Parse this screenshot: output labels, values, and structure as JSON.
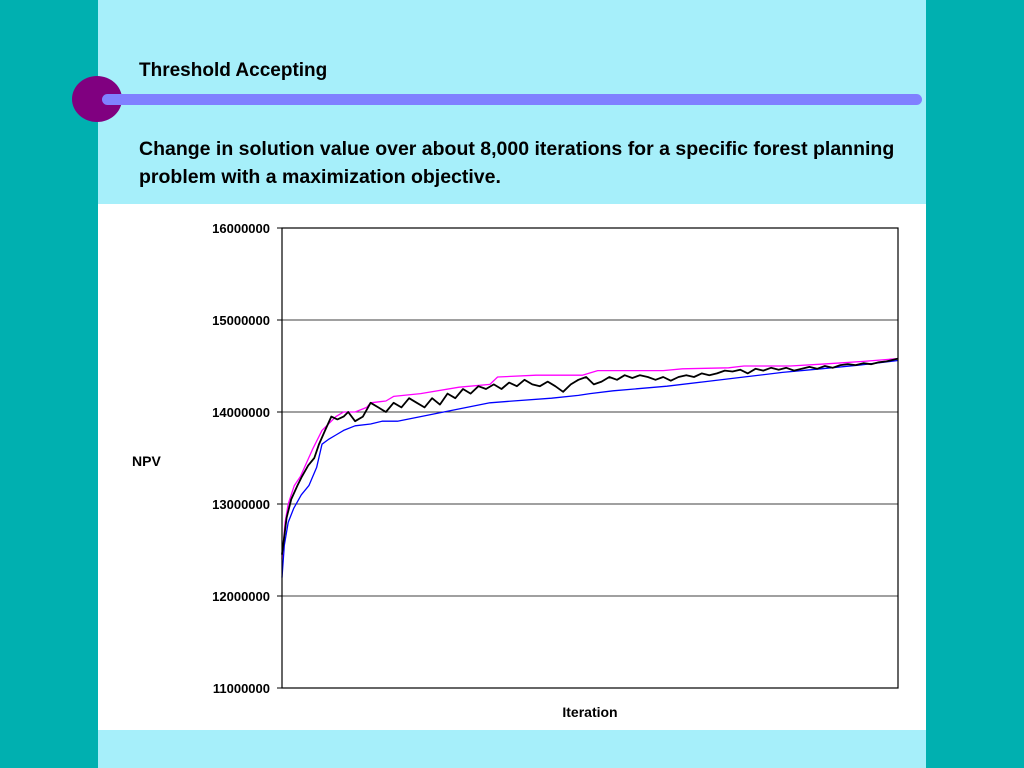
{
  "slide": {
    "title": "Threshold Accepting",
    "subtitle": "Change in solution value over about 8,000 iterations for a specific forest planning problem with a maximization objective."
  },
  "colors": {
    "background": "#00b0b0",
    "slide_panel": "#a6effa",
    "accent_circle": "#800080",
    "accent_bar": "#8080ff",
    "current_series": "#000000",
    "upper_series": "#ff00ff",
    "lower_series": "#0000ff"
  },
  "chart_data": {
    "type": "line",
    "title": "",
    "xlabel": "Iteration",
    "ylabel": "NPV",
    "ylim": [
      11000000,
      16000000
    ],
    "yticks": [
      11000000,
      12000000,
      13000000,
      14000000,
      15000000,
      16000000
    ],
    "ytick_labels": [
      "11000000",
      "12000000",
      "13000000",
      "14000000",
      "15000000",
      "16000000"
    ],
    "xlim": [
      0,
      8000
    ],
    "grid": "horizontal",
    "legend": "none",
    "series": [
      {
        "key": "upper",
        "color": "#ff00ff",
        "x": [
          0,
          40,
          80,
          160,
          240,
          320,
          400,
          520,
          640,
          700,
          800,
          950,
          1100,
          1150,
          1350,
          1450,
          1800,
          2300,
          2700,
          2800,
          3300,
          3900,
          4100,
          4950,
          5200,
          5800,
          6000,
          6600,
          7000,
          7200,
          7550,
          8000
        ],
        "y": [
          12400000,
          12800000,
          13000000,
          13200000,
          13300000,
          13450000,
          13600000,
          13800000,
          13900000,
          13950000,
          14000000,
          14000000,
          14050000,
          14100000,
          14120000,
          14170000,
          14200000,
          14270000,
          14300000,
          14380000,
          14400000,
          14400000,
          14450000,
          14450000,
          14470000,
          14480000,
          14500000,
          14500000,
          14520000,
          14530000,
          14550000,
          14580000
        ]
      },
      {
        "key": "current",
        "color": "#000000",
        "x": [
          0,
          60,
          120,
          200,
          260,
          340,
          420,
          480,
          560,
          640,
          720,
          800,
          860,
          950,
          1050,
          1150,
          1250,
          1350,
          1450,
          1550,
          1650,
          1750,
          1850,
          1950,
          2050,
          2150,
          2250,
          2350,
          2450,
          2550,
          2650,
          2750,
          2850,
          2950,
          3050,
          3150,
          3250,
          3350,
          3450,
          3550,
          3650,
          3750,
          3850,
          3950,
          4050,
          4150,
          4250,
          4350,
          4450,
          4550,
          4650,
          4750,
          4850,
          4950,
          5050,
          5150,
          5250,
          5350,
          5450,
          5550,
          5650,
          5750,
          5850,
          5950,
          6050,
          6150,
          6250,
          6350,
          6450,
          6550,
          6650,
          6750,
          6850,
          6950,
          7050,
          7150,
          7250,
          7350,
          7450,
          7550,
          7650,
          7750,
          7850,
          8000
        ],
        "y": [
          12450000,
          12850000,
          13050000,
          13200000,
          13300000,
          13420000,
          13500000,
          13650000,
          13800000,
          13950000,
          13920000,
          13950000,
          14000000,
          13900000,
          13950000,
          14100000,
          14050000,
          14000000,
          14100000,
          14050000,
          14150000,
          14100000,
          14050000,
          14150000,
          14080000,
          14200000,
          14150000,
          14250000,
          14200000,
          14280000,
          14250000,
          14300000,
          14250000,
          14320000,
          14280000,
          14350000,
          14300000,
          14280000,
          14330000,
          14280000,
          14220000,
          14300000,
          14350000,
          14380000,
          14300000,
          14330000,
          14380000,
          14350000,
          14400000,
          14370000,
          14400000,
          14380000,
          14350000,
          14380000,
          14340000,
          14380000,
          14400000,
          14380000,
          14420000,
          14400000,
          14420000,
          14450000,
          14440000,
          14460000,
          14420000,
          14470000,
          14450000,
          14480000,
          14460000,
          14480000,
          14450000,
          14470000,
          14490000,
          14470000,
          14500000,
          14480000,
          14510000,
          14520000,
          14510000,
          14530000,
          14520000,
          14540000,
          14550000,
          14580000
        ]
      },
      {
        "key": "lower",
        "color": "#0000ff",
        "x": [
          0,
          30,
          80,
          150,
          250,
          350,
          450,
          520,
          600,
          700,
          800,
          950,
          1150,
          1300,
          1500,
          1800,
          2100,
          2400,
          2700,
          3000,
          3500,
          3850,
          4000,
          4300,
          5000,
          5500,
          6000,
          6500,
          7000,
          7500,
          8000
        ],
        "y": [
          12200000,
          12550000,
          12800000,
          12950000,
          13100000,
          13200000,
          13400000,
          13650000,
          13700000,
          13750000,
          13800000,
          13850000,
          13870000,
          13900000,
          13900000,
          13950000,
          14000000,
          14050000,
          14100000,
          14120000,
          14150000,
          14180000,
          14200000,
          14230000,
          14280000,
          14330000,
          14380000,
          14430000,
          14470000,
          14510000,
          14560000
        ]
      }
    ]
  }
}
